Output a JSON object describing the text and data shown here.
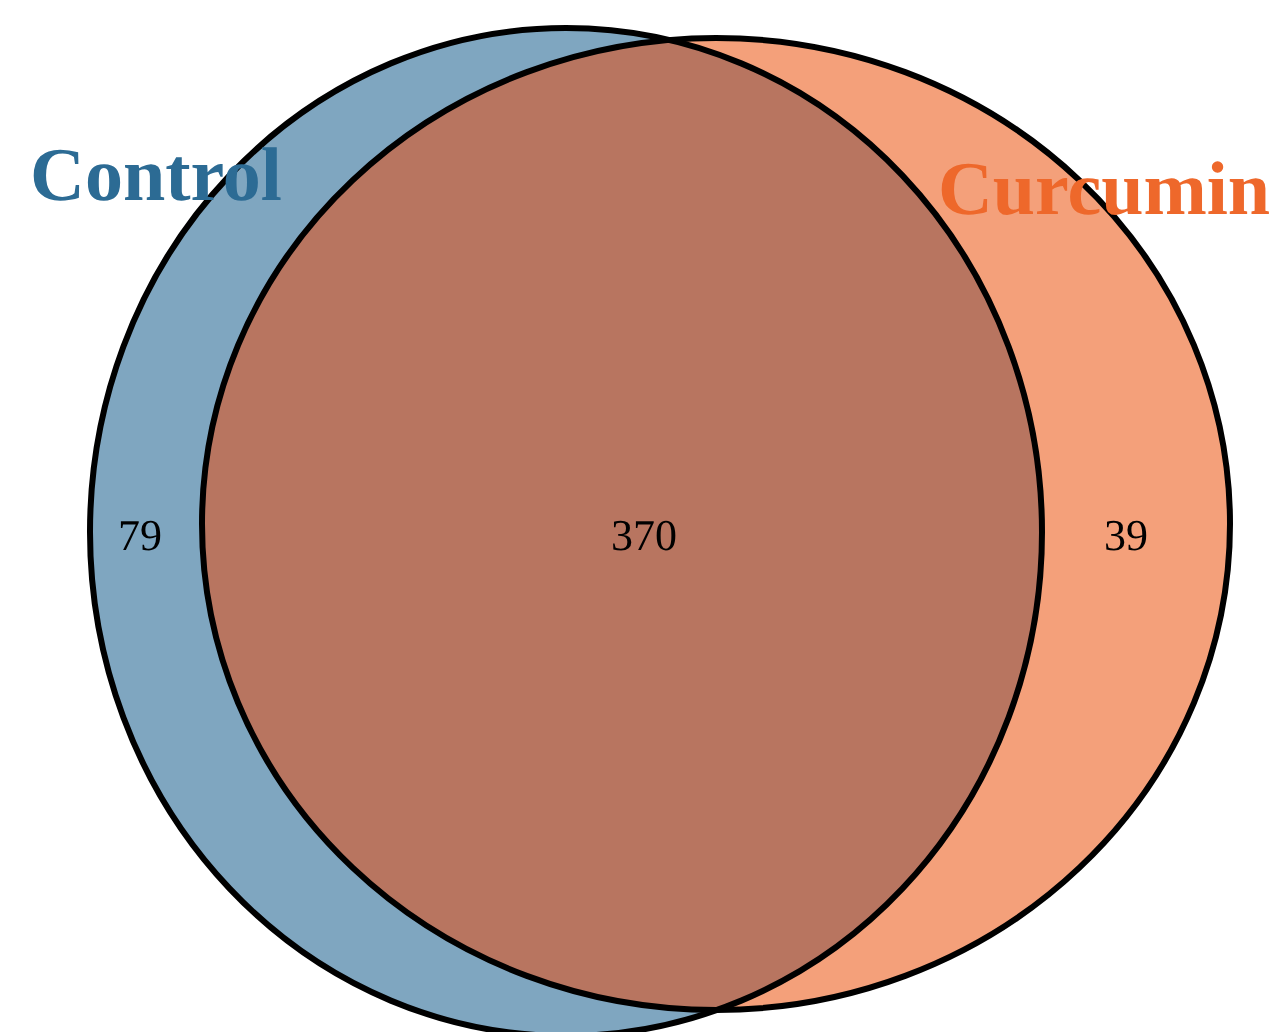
{
  "chart_data": {
    "type": "other",
    "categories": [
      "Control",
      null,
      "Curcumin"
    ],
    "values": [
      79,
      370,
      39
    ],
    "colors": [
      "#7fa6c0",
      "#b87560",
      "#f4a07a"
    ],
    "data_labels": true
  }
}
